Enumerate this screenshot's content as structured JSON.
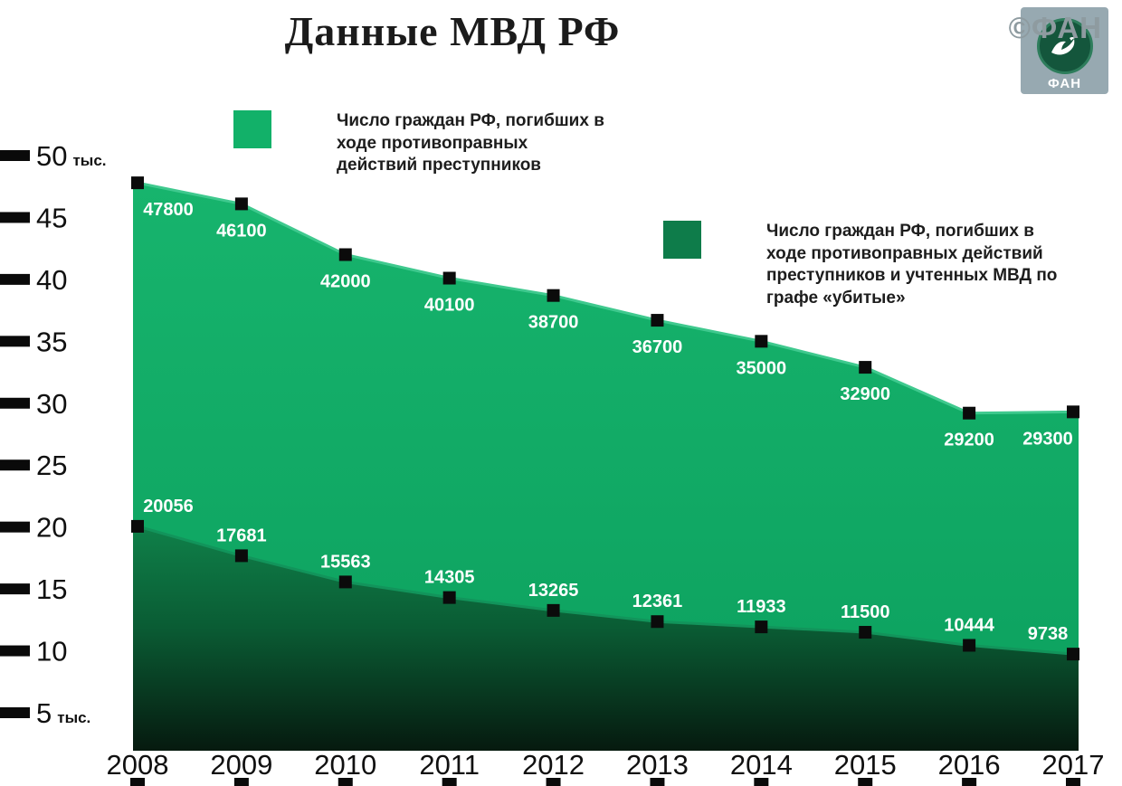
{
  "title": "Данные МВД РФ",
  "watermark": "©ФАН",
  "logo": {
    "label": "ФАН"
  },
  "legend": [
    {
      "color": "#12b169",
      "text": "Число граждан РФ, погибших в ходе противоправных действий преступников"
    },
    {
      "color": "#0e7c4a",
      "text": "Число граждан РФ, погибших в ходе противоправных действий преступников и учтенных МВД по графе «убитые»"
    }
  ],
  "y_axis": {
    "unit": "тыс.",
    "ticks": [
      50,
      45,
      40,
      35,
      30,
      25,
      20,
      15,
      10,
      5
    ]
  },
  "chart_data": {
    "type": "area",
    "title": "Данные МВД РФ",
    "x": [
      2008,
      2009,
      2010,
      2011,
      2012,
      2013,
      2014,
      2015,
      2016,
      2017
    ],
    "series": [
      {
        "name": "Число граждан РФ, погибших в ходе противоправных действий преступников",
        "color": "#12b169",
        "values": [
          47800,
          46100,
          42000,
          40100,
          38700,
          36700,
          35000,
          32900,
          29200,
          29300
        ]
      },
      {
        "name": "Число граждан РФ, погибших в ходе противоправных действий преступников и учтенных МВД по графе «убитые»",
        "color": "#0e7c4a",
        "values": [
          20056,
          17681,
          15563,
          14305,
          13265,
          12361,
          11933,
          11500,
          10444,
          9738
        ]
      }
    ],
    "ylim": [
      0,
      50000
    ],
    "y_unit": "тыс.",
    "grid": false,
    "legend_position": "top"
  }
}
